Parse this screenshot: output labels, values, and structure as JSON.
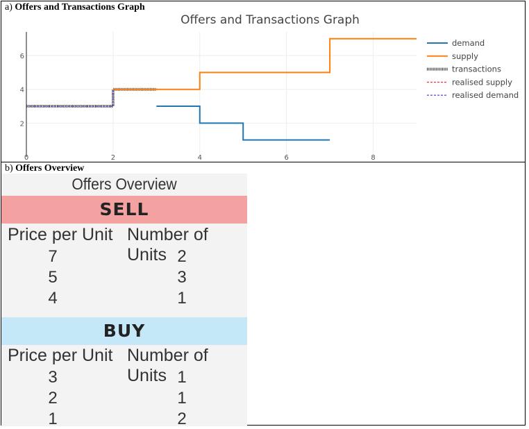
{
  "panel_a": {
    "label": "a)",
    "caption": "Offers and Transactions Graph"
  },
  "panel_b": {
    "label": "b)",
    "caption": "Offers Overview"
  },
  "chart_data": {
    "type": "line",
    "title": "Offers and Transactions Graph",
    "xlim": [
      0,
      9
    ],
    "ylim": [
      0,
      7.4
    ],
    "xticks": [
      0,
      2,
      4,
      6,
      8
    ],
    "yticks": [
      2,
      4,
      6
    ],
    "grid": true,
    "legend_position": "right",
    "series": [
      {
        "name": "demand",
        "color": "#1f77b4",
        "dash": "solid",
        "x": [
          3,
          4,
          4,
          5,
          5,
          7
        ],
        "y": [
          3,
          3,
          2,
          2,
          1,
          1
        ]
      },
      {
        "name": "supply",
        "color": "#ff7f0e",
        "dash": "solid",
        "x": [
          2,
          4,
          4,
          7,
          7,
          9
        ],
        "y": [
          4,
          4,
          5,
          5,
          7,
          7
        ]
      },
      {
        "name": "transactions",
        "color": "#2a2a2a",
        "dash": "hatched",
        "x": [
          0,
          2,
          2,
          3
        ],
        "y": [
          3,
          3,
          4,
          4
        ]
      },
      {
        "name": "realised supply",
        "color": "#ef3b3b",
        "dash": "dash",
        "x": [
          0,
          2,
          2,
          3
        ],
        "y": [
          3,
          3,
          4,
          4
        ]
      },
      {
        "name": "realised demand",
        "color": "#5b5bd6",
        "dash": "dash",
        "x": [
          0,
          2,
          2,
          3
        ],
        "y": [
          3,
          3,
          4,
          4
        ]
      }
    ]
  },
  "overview": {
    "title": "Offers Overview",
    "sell": {
      "label": "SELL",
      "headers": [
        "Price per Unit",
        "Number of Units"
      ],
      "rows": [
        [
          "7",
          "2"
        ],
        [
          "5",
          "3"
        ],
        [
          "4",
          "1"
        ]
      ]
    },
    "buy": {
      "label": "BUY",
      "headers": [
        "Price per Unit",
        "Number of Units"
      ],
      "rows": [
        [
          "3",
          "1"
        ],
        [
          "2",
          "1"
        ],
        [
          "1",
          "2"
        ]
      ]
    }
  }
}
